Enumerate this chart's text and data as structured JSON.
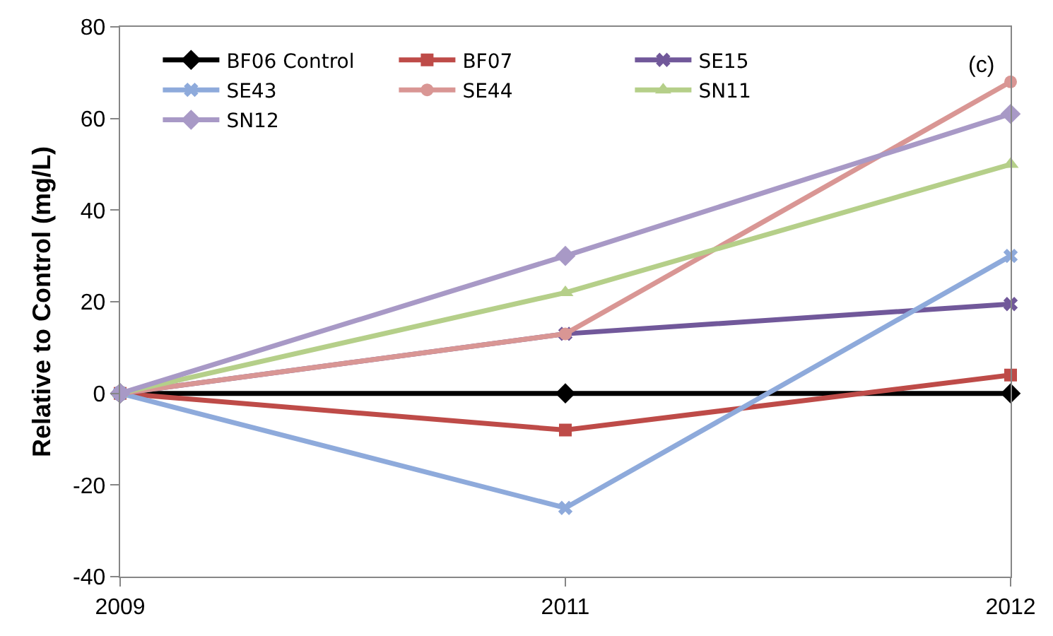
{
  "chart_data": {
    "type": "line",
    "ylabel": "Relative to Control (mg/L)",
    "annotations": [
      "(c)"
    ],
    "categories": [
      "2009",
      "2011",
      "2012"
    ],
    "ylim": [
      -40,
      80
    ],
    "yticks": [
      -40,
      -20,
      0,
      20,
      40,
      60,
      80
    ],
    "grid": false,
    "legend": "top left",
    "series": [
      {
        "name": "BF06 Control",
        "color": "#000000",
        "marker": "diamond",
        "values": [
          0,
          0,
          0
        ]
      },
      {
        "name": "BF07",
        "color": "#be4b48",
        "marker": "square",
        "values": [
          0,
          -8,
          4
        ]
      },
      {
        "name": "SE15",
        "color": "#71589a",
        "marker": "cross",
        "values": [
          0,
          13,
          19.5
        ]
      },
      {
        "name": "SE43",
        "color": "#8eaadb",
        "marker": "cross",
        "values": [
          0,
          -25,
          30
        ]
      },
      {
        "name": "SE44",
        "color": "#d99694",
        "marker": "circle",
        "values": [
          0,
          13,
          68
        ]
      },
      {
        "name": "SN11",
        "color": "#b5cf89",
        "marker": "triangle",
        "values": [
          0,
          22,
          50
        ]
      },
      {
        "name": "SN12",
        "color": "#a899c6",
        "marker": "diamond",
        "values": [
          0,
          30,
          61
        ]
      }
    ]
  }
}
